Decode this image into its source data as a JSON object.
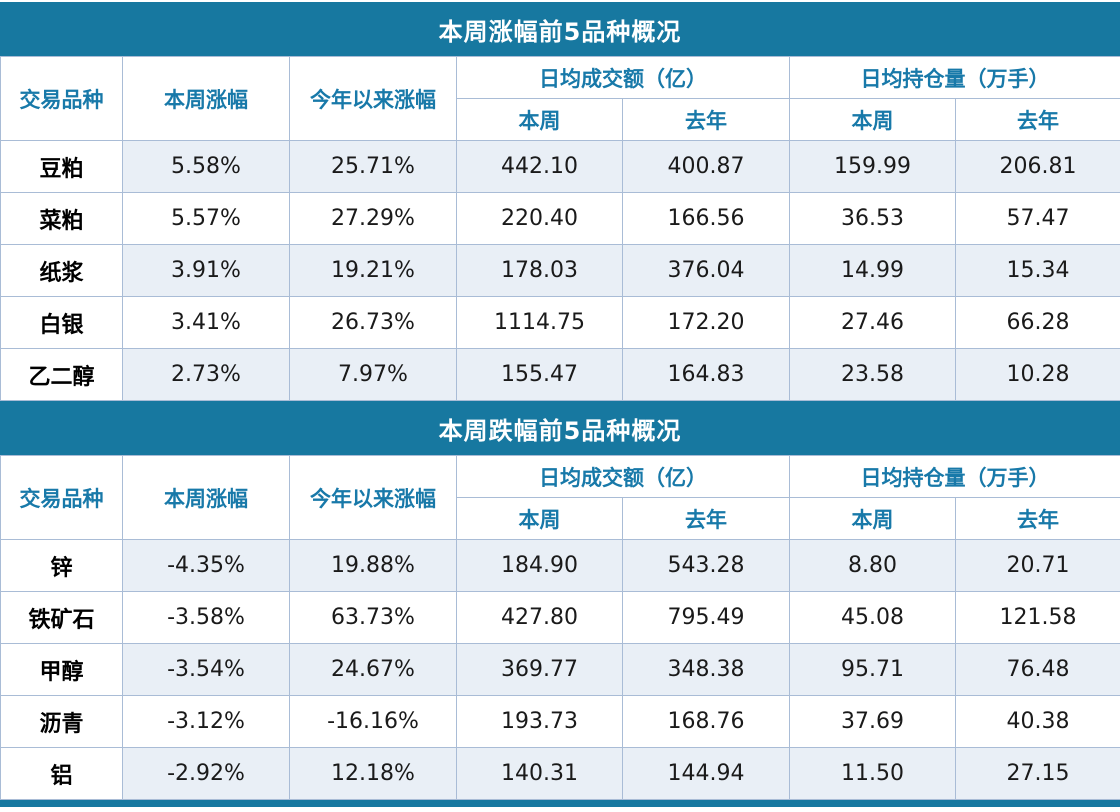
{
  "colors": {
    "band_teal": "#1778A0",
    "header_text_teal": "#1879A9",
    "row_stripe": "#E9EFF6",
    "grid_line": "#A9BCD6",
    "title_text": "#FFFFFF",
    "data_text": "#1A1A1A"
  },
  "chart_data": [
    {
      "type": "table",
      "title": "本周涨幅前5品种概况",
      "header": {
        "product": "交易品种",
        "week_change": "本周涨幅",
        "ytd_change": "今年以来涨幅",
        "turnover_group": "日均成交额（亿）",
        "position_group": "日均持仓量（万手）",
        "this_week": "本周",
        "last_year": "去年"
      },
      "rows": [
        [
          "豆粕",
          "5.58%",
          "25.71%",
          "442.10",
          "400.87",
          "159.99",
          "206.81"
        ],
        [
          "菜粕",
          "5.57%",
          "27.29%",
          "220.40",
          "166.56",
          "36.53",
          "57.47"
        ],
        [
          "纸浆",
          "3.91%",
          "19.21%",
          "178.03",
          "376.04",
          "14.99",
          "15.34"
        ],
        [
          "白银",
          "3.41%",
          "26.73%",
          "1114.75",
          "172.20",
          "27.46",
          "66.28"
        ],
        [
          "乙二醇",
          "2.73%",
          "7.97%",
          "155.47",
          "164.83",
          "23.58",
          "10.28"
        ]
      ]
    },
    {
      "type": "table",
      "title": "本周跌幅前5品种概况",
      "header": {
        "product": "交易品种",
        "week_change": "本周涨幅",
        "ytd_change": "今年以来涨幅",
        "turnover_group": "日均成交额（亿）",
        "position_group": "日均持仓量（万手）",
        "this_week": "本周",
        "last_year": "去年"
      },
      "rows": [
        [
          "锌",
          "-4.35%",
          "19.88%",
          "184.90",
          "543.28",
          "8.80",
          "20.71"
        ],
        [
          "铁矿石",
          "-3.58%",
          "63.73%",
          "427.80",
          "795.49",
          "45.08",
          "121.58"
        ],
        [
          "甲醇",
          "-3.54%",
          "24.67%",
          "369.77",
          "348.38",
          "95.71",
          "76.48"
        ],
        [
          "沥青",
          "-3.12%",
          "-16.16%",
          "193.73",
          "168.76",
          "37.69",
          "40.38"
        ],
        [
          "铝",
          "-2.92%",
          "12.18%",
          "140.31",
          "144.94",
          "11.50",
          "27.15"
        ]
      ]
    }
  ]
}
